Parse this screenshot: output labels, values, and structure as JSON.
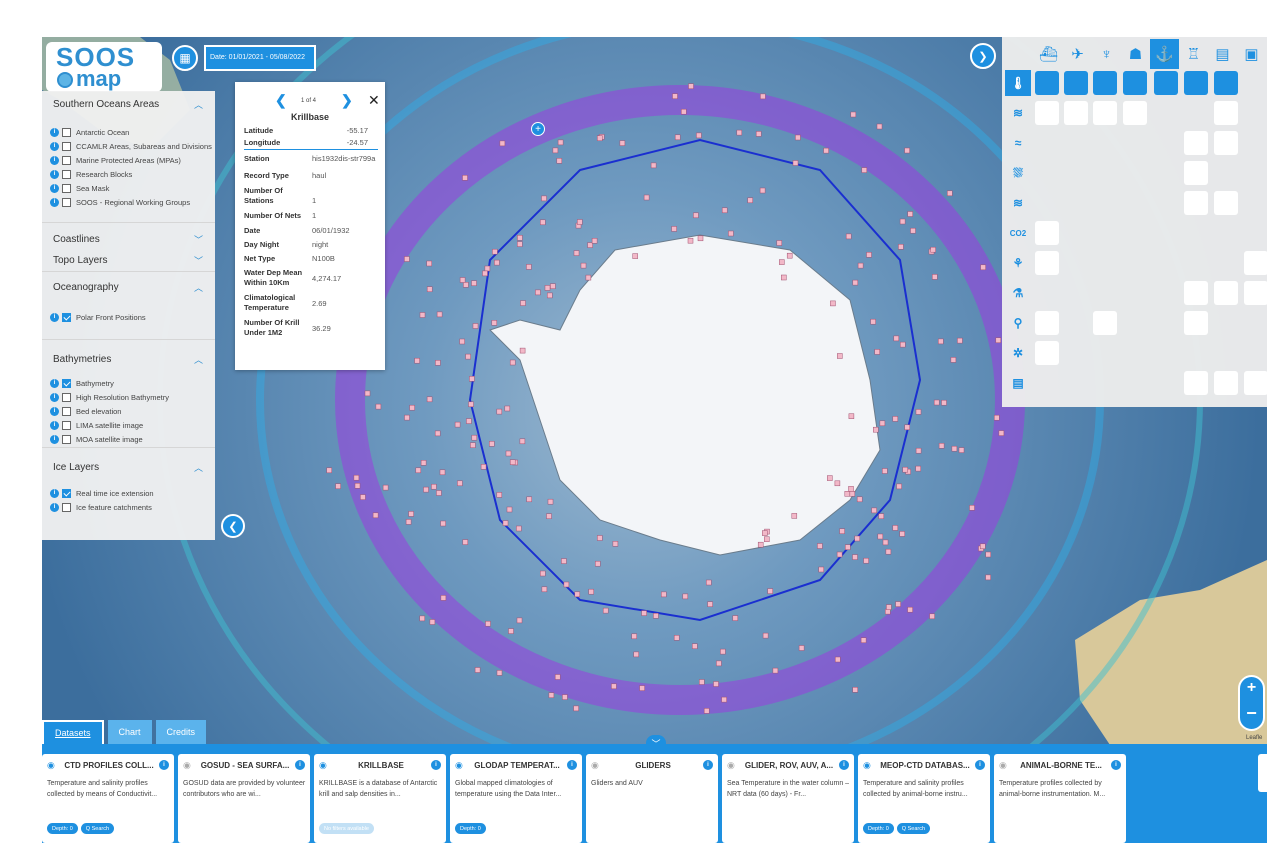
{
  "logo": {
    "line1": "SOOS",
    "line2": "map"
  },
  "date_filter": {
    "label": "Date: 01/01/2021 - 05/08/2022"
  },
  "icons": {
    "calendar": "calendar-icon",
    "collapse_left": "chevron-left-icon",
    "expand_right": "chevron-right-icon"
  },
  "left_panel": {
    "southern_oceans": {
      "title": "Southern Oceans Areas",
      "items": [
        "Antarctic Ocean",
        "CCAMLR Areas, Subareas and Divisions",
        "Marine Protected Areas (MPAs)",
        "Research Blocks",
        "Sea Mask",
        "SOOS - Regional Working Groups"
      ]
    },
    "coastlines": {
      "title": "Coastlines"
    },
    "topo": {
      "title": "Topo Layers"
    },
    "oceanography": {
      "title": "Oceanography",
      "items": [
        "Polar Front Positions"
      ]
    },
    "bathymetries": {
      "title": "Bathymetries",
      "items": [
        "Bathymetry",
        "High Resolution Bathymetry",
        "Bed elevation",
        "LIMA satellite image",
        "MOA satellite image"
      ]
    },
    "ice": {
      "title": "Ice Layers",
      "items": [
        "Real time ice extension",
        "Ice feature catchments"
      ]
    }
  },
  "popup": {
    "counter": "1 of 4",
    "title": "Krillbase",
    "latitude_label": "Latitude",
    "latitude": "-55.17",
    "longitude_label": "Longitude",
    "longitude": "-24.57",
    "station_label": "Station",
    "station": "his1932dis-str799a",
    "record_type_label": "Record Type",
    "record_type": "haul",
    "num_stations_label": "Number Of Stations",
    "num_stations": "1",
    "num_nets_label": "Number Of Nets",
    "num_nets": "1",
    "date_label": "Date",
    "date": "06/01/1932",
    "day_night_label": "Day Night",
    "day_night": "night",
    "net_type_label": "Net Type",
    "net_type": "N100B",
    "water_dep_label": "Water Dep Mean Within 10Km",
    "water_dep": "4,274.17",
    "clim_temp_label": "Climatological Temperature",
    "clim_temp": "2.69",
    "num_krill_label": "Number Of Krill Under 1M2",
    "num_krill": "36.29"
  },
  "right_panel": {
    "top_icons": [
      "ship-icon",
      "plane-icon",
      "bird-icon",
      "person-icon",
      "buoy-icon",
      "platform-icon",
      "map-icon",
      "database-icon"
    ],
    "row_icons": [
      "thermometer-icon",
      "wave-icon",
      "salinity-icon",
      "ice-icon",
      "wind-icon",
      "co2-icon",
      "biology-icon",
      "chemistry-icon",
      "location-icon",
      "plankton-icon",
      "data-icon"
    ],
    "co2_text": "CO2"
  },
  "zoom": {
    "in": "+",
    "out": "−"
  },
  "attribution": "Leafle",
  "tabs": [
    "Datasets",
    "Chart",
    "Credits"
  ],
  "cards": [
    {
      "title": "CTD PROFILES COLL...",
      "desc": "Temperature and salinity profiles collected by means of Conductivit...",
      "badges": [
        "Depth: 0",
        "Q Search"
      ],
      "active": true
    },
    {
      "title": "GOSUD - SEA SURFA...",
      "desc": "GOSUD data are provided by volunteer contributors who are wi...",
      "badges": [],
      "active": false
    },
    {
      "title": "KRILLBASE",
      "desc": "KRILLBASE is a database of Antarctic krill and salp densities in...",
      "badges": [
        "No filters available"
      ],
      "active": true
    },
    {
      "title": "GLODAP TEMPERAT...",
      "desc": "Global mapped climatologies of temperature using the Data Inter...",
      "badges": [
        "Depth: 0"
      ],
      "active": true
    },
    {
      "title": "GLIDERS",
      "desc": "Gliders and AUV",
      "badges": [],
      "active": false
    },
    {
      "title": "GLIDER, ROV, AUV, A...",
      "desc": "Sea Temperature in the water column – NRT data (60 days) - Fr...",
      "badges": [],
      "active": false
    },
    {
      "title": "MEOP-CTD DATABAS...",
      "desc": "Temperature and salinity profiles collected by animal-borne instru...",
      "badges": [
        "Depth: 0",
        "Q Search"
      ],
      "active": true
    },
    {
      "title": "ANIMAL-BORNE TE...",
      "desc": "Temperature profiles collected by animal-borne instrumentation. M...",
      "badges": [],
      "active": false
    }
  ]
}
